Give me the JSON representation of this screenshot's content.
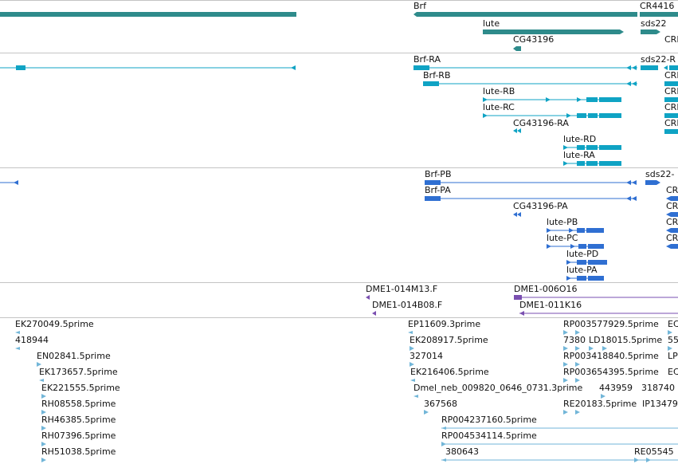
{
  "colors": {
    "gene": "#2e8b8b",
    "transcript": "#0fa3c4",
    "protein": "#2f6fd2",
    "clone": "#7a4fb0",
    "est": "#72b6d8",
    "separator": "#c4c4c4"
  },
  "tracks": {
    "genes": [
      "Brf",
      "CR4416",
      "lute",
      "sds22",
      "CRI",
      "CG43196"
    ],
    "transcripts": [
      "Brf-RA",
      "sds22-R",
      "Brf-RB",
      "CRI",
      "lute-RB",
      "CRI",
      "lute-RC",
      "CRI",
      "CG43196-RA",
      "CRI",
      "lute-RD",
      "lute-RA"
    ],
    "proteins": [
      "Brf-PB",
      "sds22-",
      "Brf-PA",
      "CR",
      "CG43196-PA",
      "CR",
      "lute-PB",
      "CR",
      "lute-PC",
      "CR",
      "lute-PD",
      "lute-PA"
    ],
    "clones": [
      "DME1-014M13.F",
      "DME1-006O16",
      "DME1-014B08.F",
      "DME1-011K16"
    ],
    "ests": [
      "EK270049.5prime",
      "EP11609.3prime",
      "RP003577929.5prime",
      "EC",
      "418944",
      "EK208917.5prime",
      "7380",
      "LD18015.5prime",
      "55",
      "EN02841.5prime",
      "327014",
      "RP003418840.5prime",
      "LP",
      "EK173657.5prime",
      "EK216406.5prime",
      "RP003654395.5prime",
      "EC",
      "EK221555.5prime",
      "Dmel_neb_009820_0646_0731.3prime",
      "443959",
      "318740",
      "RH08558.5prime",
      "367568",
      "RE20183.5prime",
      "IP13479",
      "RH46385.5prime",
      "RP004237160.5prime",
      "RH07396.5prime",
      "RP004534114.5prime",
      "RH51038.5prime",
      "380643",
      "RE05545"
    ]
  }
}
